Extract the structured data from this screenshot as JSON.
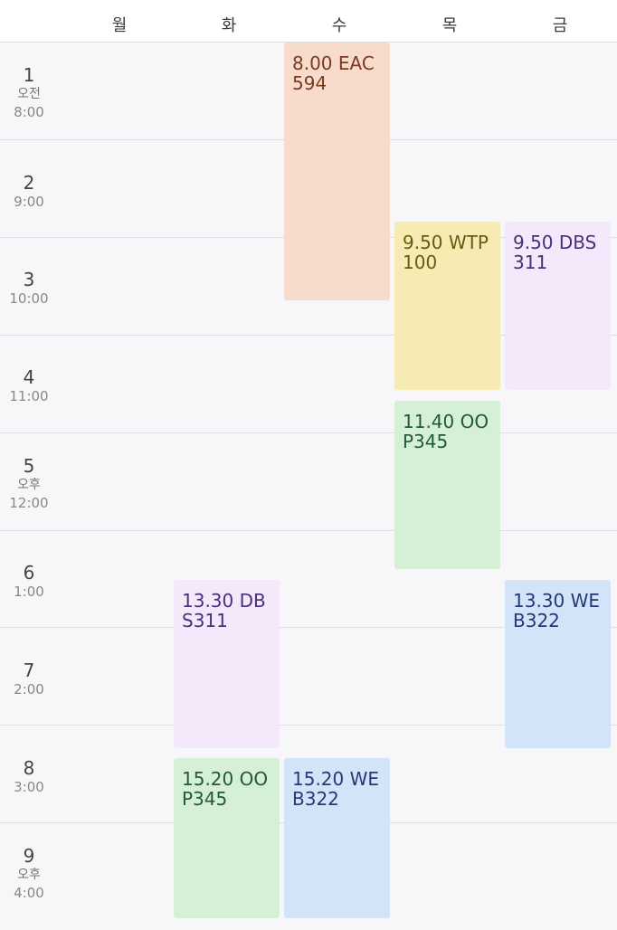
{
  "days": [
    "월",
    "화",
    "수",
    "목",
    "금"
  ],
  "slots": [
    {
      "num": "1",
      "ampm": "오전",
      "time": "8:00"
    },
    {
      "num": "2",
      "ampm": "",
      "time": "9:00"
    },
    {
      "num": "3",
      "ampm": "",
      "time": "10:00"
    },
    {
      "num": "4",
      "ampm": "",
      "time": "11:00"
    },
    {
      "num": "5",
      "ampm": "오후",
      "time": "12:00"
    },
    {
      "num": "6",
      "ampm": "",
      "time": "1:00"
    },
    {
      "num": "7",
      "ampm": "",
      "time": "2:00"
    },
    {
      "num": "8",
      "ampm": "",
      "time": "3:00"
    },
    {
      "num": "9",
      "ampm": "오후",
      "time": "4:00"
    }
  ],
  "events": [
    {
      "label": "8.00 EAC594",
      "day": "수",
      "start": "8:00",
      "end": "10:40",
      "bg": "#f7dccd",
      "fg": "#7a3a20"
    },
    {
      "label": "9.50 WTP100",
      "day": "목",
      "start": "9:50",
      "end": "11:35",
      "bg": "#f6ebb2",
      "fg": "#6b5a12"
    },
    {
      "label": "9.50 DBS311",
      "day": "금",
      "start": "9:50",
      "end": "11:35",
      "bg": "#f3e9fb",
      "fg": "#4e2d7a"
    },
    {
      "label": "11.40 OOP345",
      "day": "목",
      "start": "11:40",
      "end": "13:25",
      "bg": "#d5f0d5",
      "fg": "#235a35"
    },
    {
      "label": "13.30 DBS311",
      "day": "화",
      "start": "13:30",
      "end": "15:15",
      "bg": "#f3e9fb",
      "fg": "#4e2d7a"
    },
    {
      "label": "13.30 WEB322",
      "day": "금",
      "start": "13:30",
      "end": "15:15",
      "bg": "#d3e3f8",
      "fg": "#23397a"
    },
    {
      "label": "15.20 OOP345",
      "day": "화",
      "start": "15:20",
      "end": "17:00",
      "bg": "#d5f0d5",
      "fg": "#235a35"
    },
    {
      "label": "15.20 WEB322",
      "day": "수",
      "start": "15:20",
      "end": "17:00",
      "bg": "#d3e3f8",
      "fg": "#23397a"
    }
  ]
}
